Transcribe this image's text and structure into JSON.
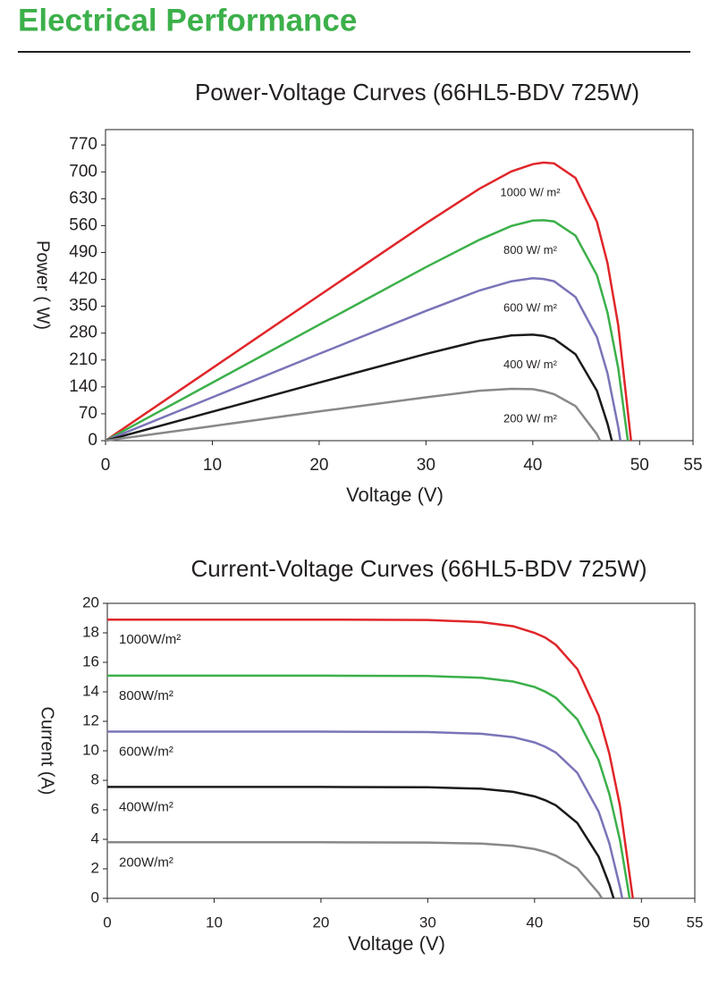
{
  "header": {
    "title": "Electrical Performance"
  },
  "chart_data": [
    {
      "type": "line",
      "title": "Power-Voltage Curves (66HL5-BDV 725W)",
      "xlabel": "Voltage (V)",
      "ylabel": "Power ( W)",
      "xlim": [
        0,
        55
      ],
      "ylim": [
        0,
        810
      ],
      "xticks": [
        0,
        10,
        20,
        30,
        40,
        50,
        55
      ],
      "yticks": [
        0,
        70,
        140,
        210,
        280,
        350,
        420,
        490,
        560,
        630,
        700,
        770
      ],
      "series": [
        {
          "name": "1000 W/ m²",
          "color": "#e0262a",
          "x": [
            0,
            10,
            20,
            30,
            35,
            38,
            40,
            41,
            42,
            44,
            46,
            47,
            48,
            49.2
          ],
          "values": [
            0,
            189,
            378,
            566,
            656,
            701,
            720,
            724,
            722,
            684,
            570,
            462,
            300,
            0
          ]
        },
        {
          "name": "800 W/ m²",
          "color": "#3cb04a",
          "x": [
            0,
            10,
            20,
            30,
            35,
            38,
            40,
            41,
            42,
            44,
            46,
            47,
            48,
            48.9
          ],
          "values": [
            0,
            151,
            302,
            452,
            523,
            559,
            573,
            574,
            571,
            534,
            431,
            333,
            188,
            0
          ]
        },
        {
          "name": "600 W/ m²",
          "color": "#7a74b8",
          "x": [
            0,
            10,
            20,
            30,
            35,
            38,
            40,
            41,
            42,
            44,
            46,
            47,
            48,
            48.2
          ],
          "values": [
            0,
            113,
            226,
            338,
            391,
            415,
            423,
            421,
            415,
            374,
            270,
            175,
            35,
            0
          ]
        },
        {
          "name": "400 W/ m²",
          "color": "#1a1a1a",
          "x": [
            0,
            10,
            20,
            30,
            35,
            38,
            40,
            41,
            42,
            44,
            46,
            47,
            47.4
          ],
          "values": [
            0,
            75.5,
            151,
            226,
            260,
            274,
            276,
            273,
            265,
            225,
            130,
            44,
            0
          ]
        },
        {
          "name": "200 W/ m²",
          "color": "#888888",
          "x": [
            0,
            10,
            20,
            30,
            35,
            38,
            40,
            41,
            42,
            44,
            46,
            46.3
          ],
          "values": [
            0,
            38,
            76,
            113,
            130,
            135,
            134,
            129,
            121,
            90,
            17,
            0
          ]
        }
      ]
    },
    {
      "type": "line",
      "title": "Current-Voltage Curves (66HL5-BDV 725W)",
      "xlabel": "Voltage (V)",
      "ylabel": "Current (A)",
      "xlim": [
        0,
        55
      ],
      "ylim": [
        0,
        20
      ],
      "xticks": [
        0,
        10,
        20,
        30,
        40,
        50,
        55
      ],
      "yticks": [
        0,
        2,
        4,
        6,
        8,
        10,
        12,
        14,
        16,
        18,
        20
      ],
      "series": [
        {
          "name": "1000W/m²",
          "color": "#e0262a",
          "x": [
            0,
            10,
            20,
            30,
            35,
            38,
            40,
            41,
            42,
            44,
            46,
            47,
            48,
            49.2
          ],
          "values": [
            18.9,
            18.9,
            18.9,
            18.87,
            18.73,
            18.45,
            18.0,
            17.67,
            17.18,
            15.55,
            12.4,
            9.82,
            6.24,
            0
          ]
        },
        {
          "name": "800W/m²",
          "color": "#3cb04a",
          "x": [
            0,
            10,
            20,
            30,
            35,
            38,
            40,
            41,
            42,
            44,
            46,
            47,
            48,
            48.9
          ],
          "values": [
            15.1,
            15.1,
            15.1,
            15.07,
            14.95,
            14.7,
            14.33,
            14.01,
            13.59,
            12.14,
            9.36,
            7.08,
            3.91,
            0
          ]
        },
        {
          "name": "600W/m²",
          "color": "#7a74b8",
          "x": [
            0,
            10,
            20,
            30,
            35,
            38,
            40,
            41,
            42,
            44,
            46,
            47,
            48,
            48.2
          ],
          "values": [
            11.3,
            11.3,
            11.3,
            11.27,
            11.16,
            10.93,
            10.57,
            10.27,
            9.88,
            8.51,
            5.87,
            3.73,
            0.73,
            0
          ]
        },
        {
          "name": "400W/m²",
          "color": "#1a1a1a",
          "x": [
            0,
            10,
            20,
            30,
            35,
            38,
            40,
            41,
            42,
            44,
            46,
            47,
            47.4
          ],
          "values": [
            7.55,
            7.55,
            7.55,
            7.53,
            7.43,
            7.22,
            6.91,
            6.65,
            6.3,
            5.11,
            2.82,
            0.94,
            0
          ]
        },
        {
          "name": "200W/m²",
          "color": "#888888",
          "x": [
            0,
            10,
            20,
            30,
            35,
            38,
            40,
            41,
            42,
            44,
            46,
            46.3
          ],
          "values": [
            3.8,
            3.8,
            3.8,
            3.78,
            3.71,
            3.56,
            3.34,
            3.15,
            2.89,
            2.04,
            0.36,
            0
          ]
        }
      ]
    }
  ]
}
